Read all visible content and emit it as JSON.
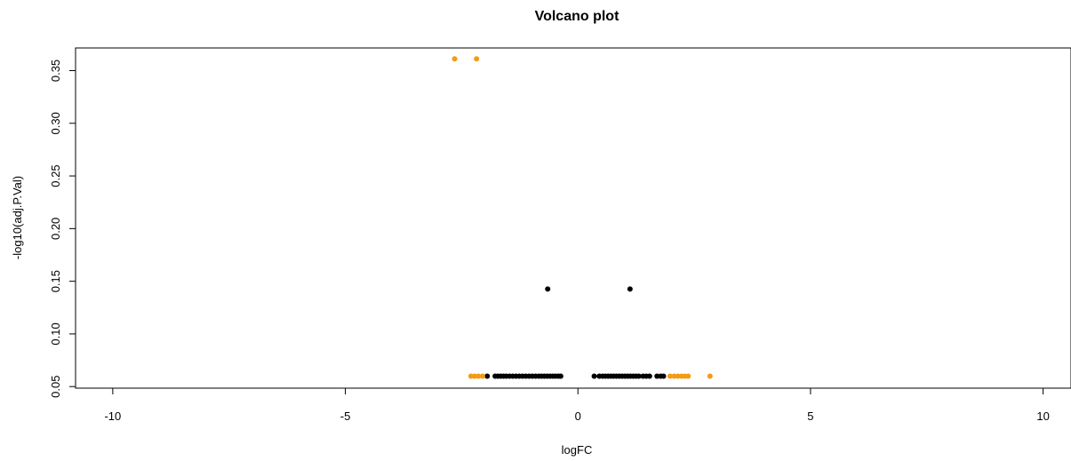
{
  "chart_data": {
    "type": "scatter",
    "title": "Volcano plot",
    "xlabel": "logFC",
    "ylabel": "-log10(adj.P.Val)",
    "xlim": [
      -10.8,
      10.6
    ],
    "ylim": [
      0.0485,
      0.3715
    ],
    "xticks": [
      "-10",
      "-5",
      "0",
      "5",
      "10"
    ],
    "yticks": [
      "0.05",
      "0.10",
      "0.15",
      "0.20",
      "0.25",
      "0.30",
      "0.35"
    ],
    "grid": false,
    "legend": "none",
    "colors": {
      "highlight": "#f39c12",
      "default": "#000000"
    },
    "series": [
      {
        "color": "#000000",
        "points": [
          [
            -0.65,
            0.1426
          ],
          [
            1.12,
            0.1426
          ],
          [
            -1.95,
            0.0599
          ],
          [
            -1.78,
            0.0599
          ],
          [
            -1.72,
            0.0599
          ],
          [
            -1.66,
            0.0599
          ],
          [
            -1.6,
            0.0599
          ],
          [
            -1.54,
            0.0599
          ],
          [
            -1.47,
            0.0599
          ],
          [
            -1.4,
            0.0599
          ],
          [
            -1.33,
            0.0599
          ],
          [
            -1.26,
            0.0599
          ],
          [
            -1.19,
            0.0599
          ],
          [
            -1.12,
            0.0599
          ],
          [
            -1.05,
            0.0599
          ],
          [
            -0.98,
            0.0599
          ],
          [
            -0.91,
            0.0599
          ],
          [
            -0.84,
            0.0599
          ],
          [
            -0.78,
            0.0599
          ],
          [
            -0.72,
            0.0599
          ],
          [
            -0.66,
            0.0599
          ],
          [
            -0.6,
            0.0599
          ],
          [
            -0.54,
            0.0599
          ],
          [
            -0.48,
            0.0599
          ],
          [
            -0.42,
            0.0599
          ],
          [
            -0.37,
            0.0599
          ],
          [
            0.35,
            0.0599
          ],
          [
            0.46,
            0.0599
          ],
          [
            0.53,
            0.0599
          ],
          [
            0.59,
            0.0599
          ],
          [
            0.65,
            0.0599
          ],
          [
            0.71,
            0.0599
          ],
          [
            0.77,
            0.0599
          ],
          [
            0.83,
            0.0599
          ],
          [
            0.89,
            0.0599
          ],
          [
            0.95,
            0.0599
          ],
          [
            1.01,
            0.0599
          ],
          [
            1.07,
            0.0599
          ],
          [
            1.13,
            0.0599
          ],
          [
            1.19,
            0.0599
          ],
          [
            1.25,
            0.0599
          ],
          [
            1.31,
            0.0599
          ],
          [
            1.4,
            0.0599
          ],
          [
            1.47,
            0.0599
          ],
          [
            1.54,
            0.0599
          ],
          [
            1.7,
            0.0599
          ],
          [
            1.78,
            0.0599
          ],
          [
            1.84,
            0.0599
          ]
        ]
      },
      {
        "color": "#f39c12",
        "points": [
          [
            -2.65,
            0.3612
          ],
          [
            -2.18,
            0.3612
          ],
          [
            -2.3,
            0.0599
          ],
          [
            -2.22,
            0.0599
          ],
          [
            -2.14,
            0.0599
          ],
          [
            -2.05,
            0.0599
          ],
          [
            1.98,
            0.0599
          ],
          [
            2.07,
            0.0599
          ],
          [
            2.15,
            0.0599
          ],
          [
            2.23,
            0.0599
          ],
          [
            2.3,
            0.0599
          ],
          [
            2.37,
            0.0599
          ],
          [
            2.84,
            0.0599
          ]
        ]
      }
    ]
  }
}
